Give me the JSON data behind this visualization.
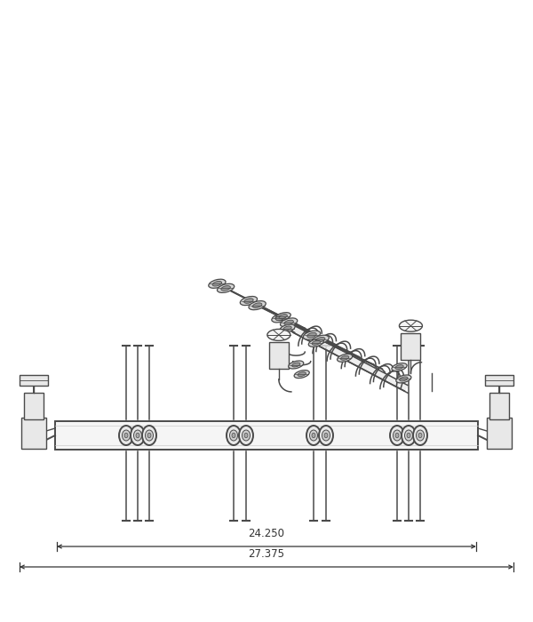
{
  "bg_color": "#ffffff",
  "line_color": "#4a4a4a",
  "fill_light": "#f5f5f5",
  "fill_mid": "#e8e8e8",
  "fill_dark": "#d0d0d0",
  "dim_color": "#333333",
  "dim1_label": "24.250",
  "dim2_label": "27.375",
  "fig_width": 6.0,
  "fig_height": 7.0
}
